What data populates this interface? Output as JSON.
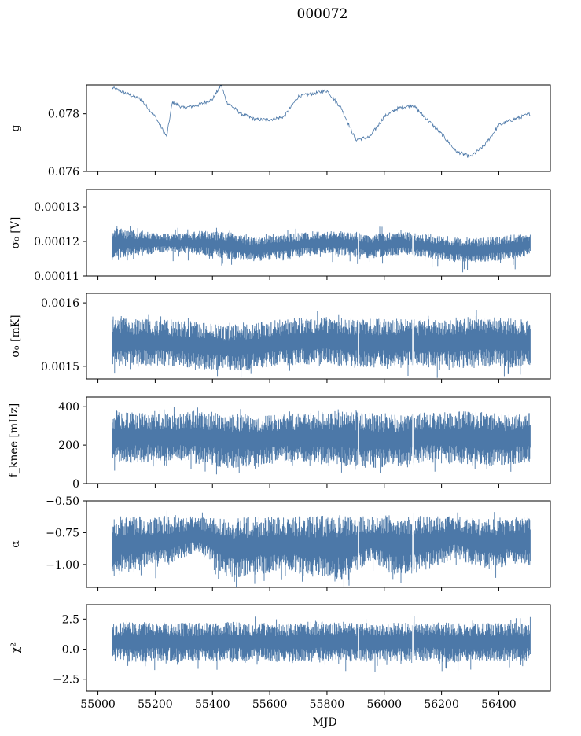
{
  "figure": {
    "title": "000072"
  },
  "chart_data": [
    {
      "type": "line",
      "ylabel": "g",
      "ylim": [
        0.076,
        0.079
      ],
      "yticks": [
        0.076,
        0.078
      ],
      "ytick_labels": [
        "0.076",
        "0.078"
      ],
      "x": [
        55050,
        55100,
        55150,
        55200,
        55240,
        55260,
        55300,
        55350,
        55400,
        55430,
        55450,
        55500,
        55550,
        55600,
        55650,
        55700,
        55750,
        55800,
        55850,
        55900,
        55950,
        56000,
        56050,
        56100,
        56150,
        56200,
        56250,
        56300,
        56350,
        56400,
        56450,
        56510
      ],
      "y": [
        0.0789,
        0.0787,
        0.0785,
        0.0779,
        0.0772,
        0.0784,
        0.0782,
        0.0783,
        0.0785,
        0.079,
        0.0784,
        0.078,
        0.0778,
        0.0778,
        0.0779,
        0.0786,
        0.0787,
        0.0788,
        0.0782,
        0.0771,
        0.0772,
        0.0779,
        0.0782,
        0.0783,
        0.0778,
        0.0773,
        0.0767,
        0.0765,
        0.0769,
        0.0776,
        0.0778,
        0.078
      ],
      "color": "#4c78a8",
      "style": "thin-line"
    },
    {
      "type": "area",
      "ylabel": "σ₀ [V]",
      "ylim": [
        0.00011,
        0.000135
      ],
      "yticks": [
        0.00011,
        0.00012,
        0.00013
      ],
      "ytick_labels": [
        "0.00011",
        "0.00012",
        "0.00013"
      ],
      "x": [
        55050,
        55150,
        55250,
        55350,
        55450,
        55550,
        55650,
        55750,
        55850,
        55950,
        56050,
        56150,
        56250,
        56350,
        56450,
        56510
      ],
      "y_low": [
        0.000115,
        0.000116,
        0.000117,
        0.000116,
        0.000115,
        0.000114,
        0.000115,
        0.000116,
        0.000116,
        0.000115,
        0.000116,
        0.000115,
        0.000114,
        0.000114,
        0.000115,
        0.000116
      ],
      "y_high": [
        0.000124,
        0.000123,
        0.000122,
        0.000123,
        0.000123,
        0.000121,
        0.000122,
        0.000123,
        0.000123,
        0.000122,
        0.000123,
        0.000122,
        0.000121,
        0.000121,
        0.000122,
        0.000122
      ],
      "color": "#4c78a8"
    },
    {
      "type": "area",
      "ylabel": "σ₀ [mK]",
      "ylim": [
        0.00148,
        0.001615
      ],
      "yticks": [
        0.0015,
        0.0016
      ],
      "ytick_labels": [
        "0.0015",
        "0.0016"
      ],
      "x": [
        55050,
        55150,
        55250,
        55350,
        55450,
        55550,
        55650,
        55750,
        55850,
        55950,
        56050,
        56150,
        56250,
        56350,
        56450,
        56510
      ],
      "y_low": [
        0.001498,
        0.001502,
        0.0015,
        0.001496,
        0.001492,
        0.001495,
        0.0015,
        0.001503,
        0.0015,
        0.001498,
        0.0015,
        0.001498,
        0.001497,
        0.001499,
        0.001498,
        0.0015
      ],
      "y_high": [
        0.001579,
        0.001575,
        0.001574,
        0.00157,
        0.001565,
        0.001568,
        0.001575,
        0.001578,
        0.001578,
        0.001575,
        0.001575,
        0.001574,
        0.001577,
        0.00158,
        0.001576,
        0.001574
      ],
      "color": "#4c78a8"
    },
    {
      "type": "area",
      "ylabel": "f_knee [mHz]",
      "ylim": [
        0,
        450
      ],
      "yticks": [
        0,
        200,
        400
      ],
      "ytick_labels": [
        "0",
        "200",
        "400"
      ],
      "x": [
        55050,
        55150,
        55250,
        55350,
        55450,
        55550,
        55650,
        55750,
        55850,
        55950,
        56050,
        56150,
        56250,
        56350,
        56450,
        56510
      ],
      "y_low": [
        100,
        110,
        120,
        100,
        80,
        90,
        110,
        100,
        90,
        80,
        90,
        110,
        100,
        90,
        100,
        110
      ],
      "y_high": [
        380,
        370,
        360,
        380,
        370,
        350,
        360,
        370,
        380,
        370,
        360,
        370,
        380,
        370,
        360,
        370
      ],
      "color": "#4c78a8"
    },
    {
      "type": "area",
      "ylabel": "α",
      "ylim": [
        -1.18,
        -0.5
      ],
      "yticks": [
        -1.0,
        -0.75,
        -0.5
      ],
      "ytick_labels": [
        "−1.00",
        "−0.75",
        "−0.50"
      ],
      "x": [
        55050,
        55150,
        55250,
        55350,
        55450,
        55550,
        55650,
        55750,
        55850,
        55950,
        56050,
        56150,
        56250,
        56350,
        56450,
        56510
      ],
      "y_low": [
        -1.1,
        -1.05,
        -1.0,
        -0.9,
        -1.1,
        -1.1,
        -1.05,
        -1.1,
        -1.12,
        -1.0,
        -1.1,
        -1.05,
        -0.95,
        -1.05,
        -1.0,
        -1.02
      ],
      "y_high": [
        -0.62,
        -0.62,
        -0.63,
        -0.62,
        -0.64,
        -0.62,
        -0.63,
        -0.62,
        -0.61,
        -0.62,
        -0.63,
        -0.61,
        -0.62,
        -0.64,
        -0.63,
        -0.62
      ],
      "color": "#4c78a8"
    },
    {
      "type": "area",
      "ylabel": "χ²",
      "ylim": [
        -3.5,
        3.7
      ],
      "yticks": [
        -2.5,
        0.0,
        2.5
      ],
      "ytick_labels": [
        "−2.5",
        "0.0",
        "2.5"
      ],
      "x": [
        55050,
        55150,
        55250,
        55350,
        55450,
        55550,
        55650,
        55750,
        55850,
        55950,
        56050,
        56150,
        56250,
        56350,
        56450,
        56510
      ],
      "y_low": [
        -1.0,
        -1.1,
        -1.0,
        -1.1,
        -1.0,
        -1.0,
        -1.1,
        -1.0,
        -1.0,
        -1.1,
        -1.0,
        -1.0,
        -1.1,
        -1.0,
        -1.0,
        -0.9
      ],
      "y_high": [
        2.2,
        2.3,
        2.2,
        2.2,
        2.3,
        2.2,
        2.2,
        2.3,
        2.2,
        2.2,
        2.2,
        2.3,
        2.2,
        2.2,
        2.2,
        2.1
      ],
      "color": "#4c78a8",
      "xlabel": "MJD"
    }
  ],
  "x_axis": {
    "xlim": [
      54960,
      56580
    ],
    "ticks": [
      55000,
      55200,
      55400,
      55600,
      55800,
      56000,
      56200,
      56400
    ],
    "tick_labels": [
      "55000",
      "55200",
      "55400",
      "55600",
      "55800",
      "56000",
      "56200",
      "56400"
    ],
    "xlabel": "MJD"
  }
}
